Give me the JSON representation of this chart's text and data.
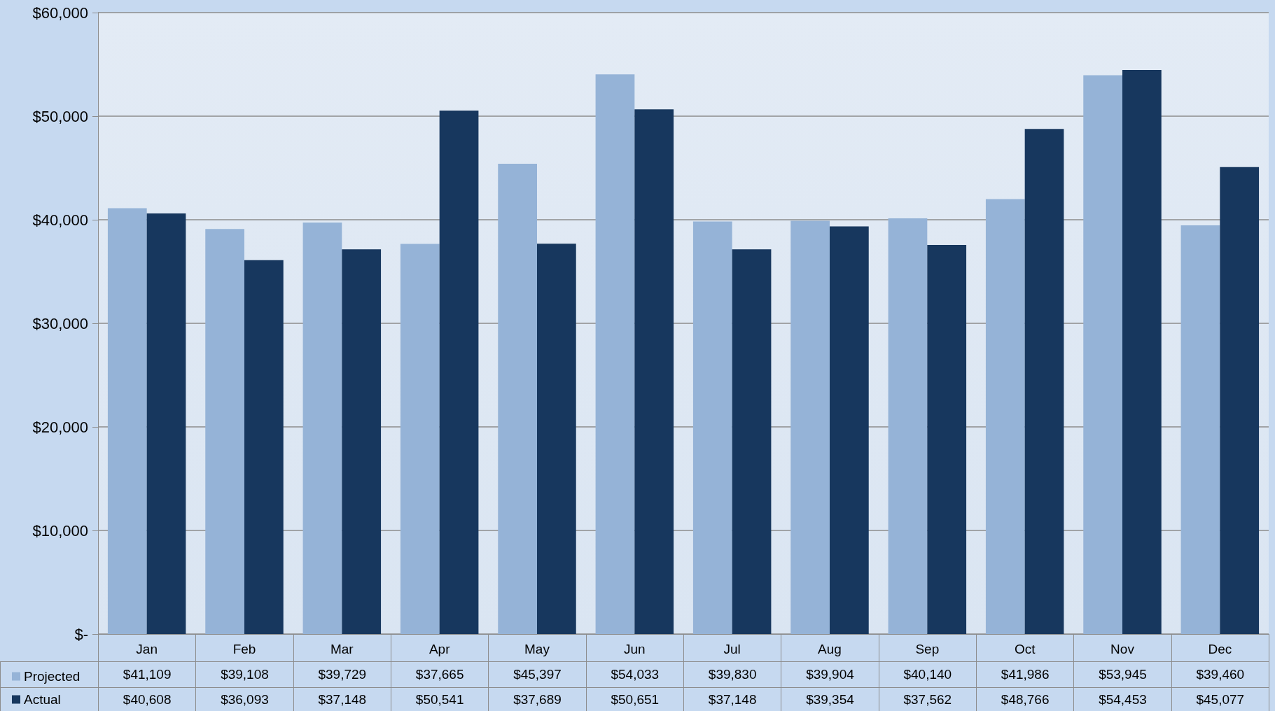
{
  "chart_data": {
    "type": "bar",
    "categories": [
      "Jan",
      "Feb",
      "Mar",
      "Apr",
      "May",
      "Jun",
      "Jul",
      "Aug",
      "Sep",
      "Oct",
      "Nov",
      "Dec"
    ],
    "series": [
      {
        "name": "Projected",
        "color": "#95b3d7",
        "values": [
          41109,
          39108,
          39729,
          37665,
          45397,
          54033,
          39830,
          39904,
          40140,
          41986,
          53945,
          39460
        ],
        "value_labels": [
          "$41,109",
          "$39,108",
          "$39,729",
          "$37,665",
          "$45,397",
          "$54,033",
          "$39,830",
          "$39,904",
          "$40,140",
          "$41,986",
          "$53,945",
          "$39,460"
        ]
      },
      {
        "name": "Actual",
        "color": "#17375e",
        "values": [
          40608,
          36093,
          37148,
          50541,
          37689,
          50651,
          37148,
          39354,
          37562,
          48766,
          54453,
          45077
        ],
        "value_labels": [
          "$40,608",
          "$36,093",
          "$37,148",
          "$50,541",
          "$37,689",
          "$50,651",
          "$37,148",
          "$39,354",
          "$37,562",
          "$48,766",
          "$54,453",
          "$45,077"
        ]
      }
    ],
    "ylim": [
      0,
      60000
    ],
    "yticks": [
      {
        "value": 0,
        "label": "$-"
      },
      {
        "value": 10000,
        "label": "$10,000"
      },
      {
        "value": 20000,
        "label": "$20,000"
      },
      {
        "value": 30000,
        "label": "$30,000"
      },
      {
        "value": 40000,
        "label": "$40,000"
      },
      {
        "value": 50000,
        "label": "$50,000"
      },
      {
        "value": 60000,
        "label": "$60,000"
      }
    ],
    "grid": "y",
    "legend": "bottom left"
  }
}
